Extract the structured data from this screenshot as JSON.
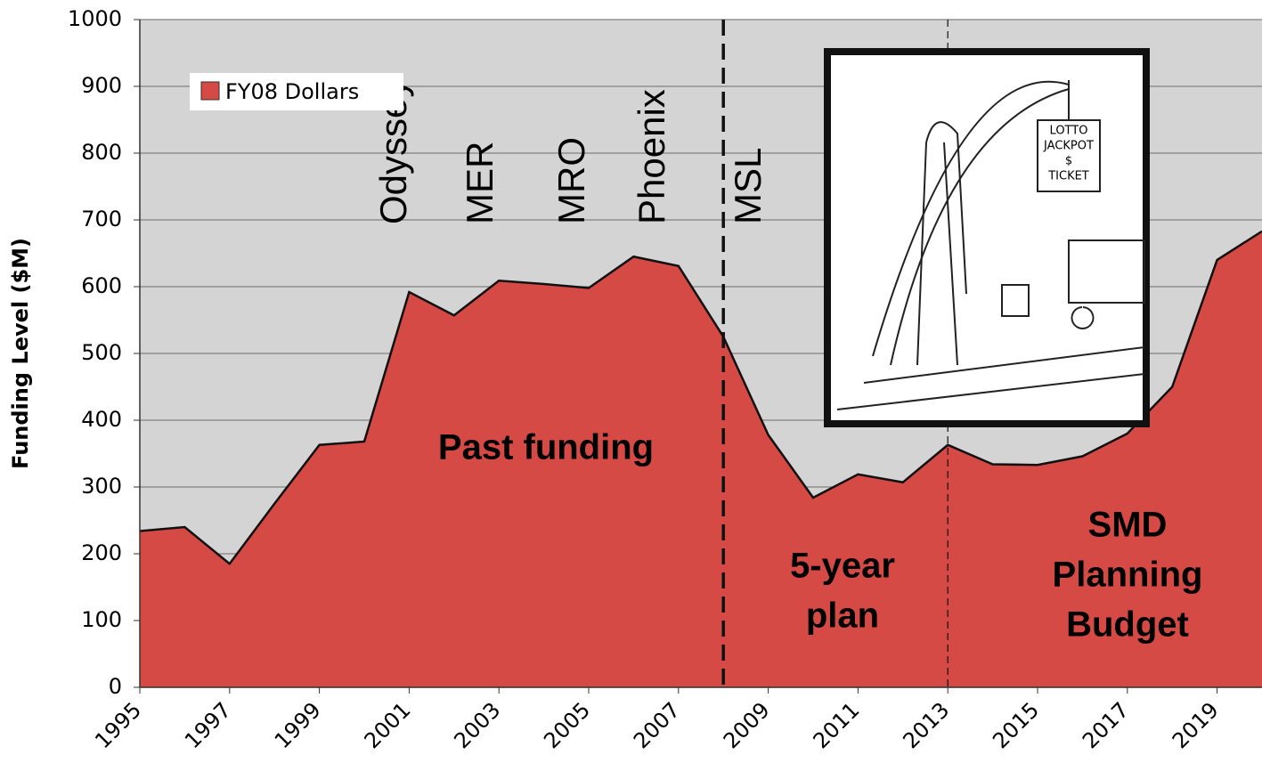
{
  "chart_data": {
    "type": "area",
    "y_label": "Funding Level ($M)",
    "x": [
      1995,
      1996,
      1997,
      1998,
      1999,
      2000,
      2001,
      2002,
      2003,
      2004,
      2005,
      2006,
      2007,
      2008,
      2009,
      2010,
      2011,
      2012,
      2013,
      2014,
      2015,
      2016,
      2017,
      2018,
      2019,
      2020
    ],
    "series": [
      {
        "name": "FY08 Dollars",
        "color": "#d64a45",
        "values": [
          234,
          240,
          185,
          275,
          363,
          368,
          592,
          557,
          609,
          604,
          598,
          645,
          631,
          525,
          378,
          284,
          319,
          307,
          363,
          334,
          333,
          346,
          380,
          450,
          640,
          683
        ]
      }
    ],
    "xlim": [
      1995,
      2020
    ],
    "xticks": [
      1995,
      1997,
      1999,
      2001,
      2003,
      2005,
      2007,
      2009,
      2011,
      2013,
      2015,
      2017,
      2019
    ],
    "ylim": [
      0,
      1000
    ],
    "yticks": [
      0,
      100,
      200,
      300,
      400,
      500,
      600,
      700,
      800,
      900,
      1000
    ],
    "grid": true,
    "legend": "upper left",
    "vlines": [
      2008,
      2013
    ],
    "missions": [
      "Odyssey",
      "MER",
      "MRO",
      "Phoenix",
      "MSL"
    ],
    "regions": [
      [
        "Past funding"
      ],
      [
        "5-year",
        "plan"
      ],
      [
        "SMD",
        "Planning",
        "Budget"
      ]
    ],
    "cartoon_sign": [
      "LOTTO",
      "JACKPOT",
      "$",
      "TICKET"
    ]
  }
}
